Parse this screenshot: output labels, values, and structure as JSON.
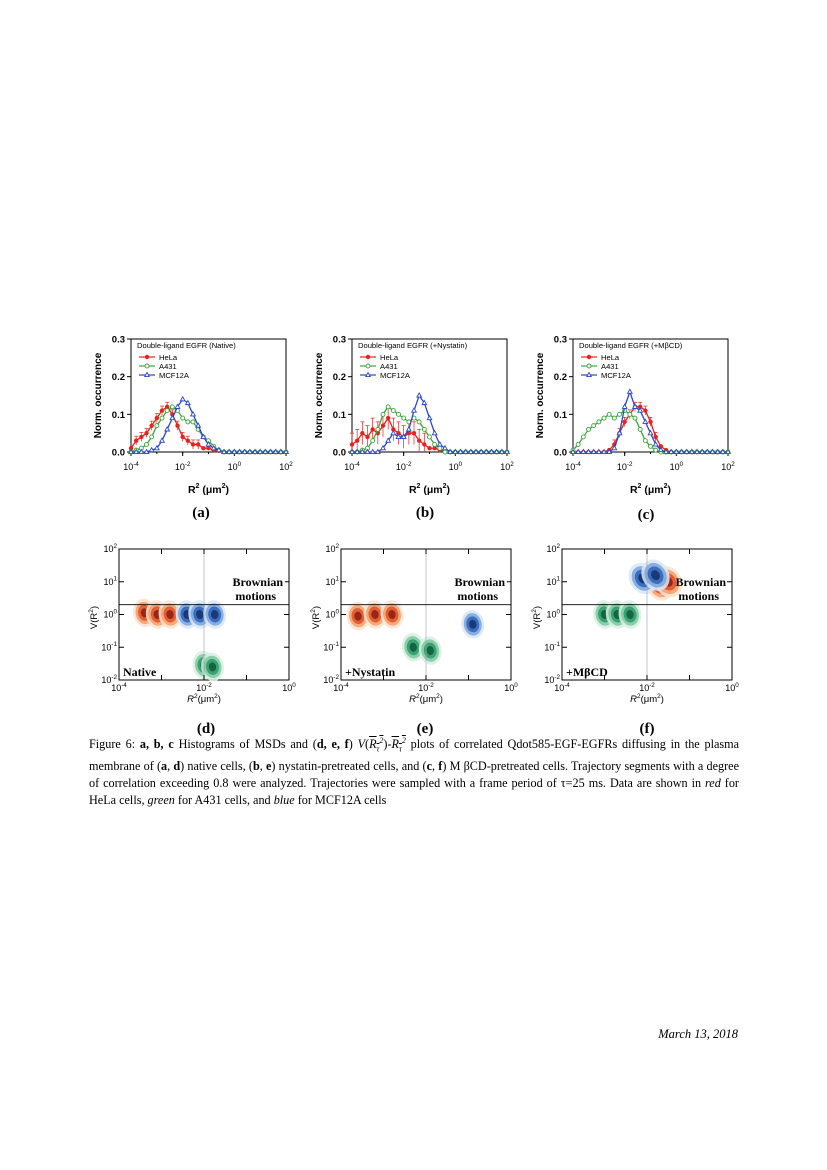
{
  "caption": {
    "fig_label": "Figure 6:",
    "abc": "a, b, c",
    "t1": " Histograms of MSDs and (",
    "def": "d, e, f",
    "t2": ") ",
    "V": "V",
    "Rtau": "R",
    "t3": " plots of correlated Qdot585-EGF-EGFRs diffusing in the plasma membrane of (",
    "a": "a",
    "d": "d",
    "t4": ") native cells, (",
    "b": "b",
    "e": "e",
    "t5": ") nystatin-pretreated cells, and (",
    "c": "c",
    "f": "f",
    "t6": ") M βCD-pretreated cells. Trajectory segments with a degree of correlation exceeding 0.8 were analyzed. Trajectories were sampled with a frame period of τ=25 ms. Data are shown in ",
    "red": "red",
    "t7": " for HeLa cells, ",
    "green": "green",
    "t8": " for A431 cells, and ",
    "blue": "blue",
    "t9": " for MCF12A cells"
  },
  "footer_date": "March 13, 2018",
  "colors": {
    "hela": "#e8221c",
    "a431": "#3aa63a",
    "mcf12a": "#2b46c8"
  },
  "top_axis": {
    "ylabel": "Norm. occurrence",
    "xlabel_base": "R",
    "xlabel_unit": "(μm",
    "yticks": [
      "0.0",
      "0.1",
      "0.2",
      "0.3"
    ],
    "xtick_base": "10",
    "xtick_exps": [
      "-4",
      "-2",
      "0",
      "2"
    ]
  },
  "legend": {
    "hela": "HeLa",
    "a431": "A431",
    "mcf12a": "MCF12A"
  },
  "panel_labels": [
    "(a)",
    "(b)",
    "(c)",
    "(d)",
    "(e)",
    "(f)"
  ],
  "bottom_axis": {
    "ylabel": "V(R",
    "xlabel": "R",
    "xlabel_unit": "(μm",
    "tick_base": "10",
    "yexps": [
      "-2",
      "-1",
      "0",
      "1",
      "2"
    ],
    "xexps": [
      "-4",
      "-2",
      "0"
    ],
    "brownian_1": "Brownian",
    "brownian_2": "motions"
  },
  "chart_data": [
    {
      "type": "line",
      "title": "Double-ligand EGFR (Native)",
      "xlabel": "R2 (μm2)",
      "ylabel": "Norm. occurrence",
      "x_scale": "log",
      "xlim": [
        0.0001,
        100
      ],
      "ylim": [
        0,
        0.3
      ],
      "log10_x": [
        -4.0,
        -3.8,
        -3.6,
        -3.4,
        -3.2,
        -3.0,
        -2.8,
        -2.6,
        -2.4,
        -2.2,
        -2.0,
        -1.8,
        -1.6,
        -1.4,
        -1.2,
        -1.0,
        -0.8,
        -0.6,
        -0.4,
        -0.2,
        0.0,
        0.2,
        0.4,
        0.6,
        0.8,
        1.0,
        1.2,
        1.4,
        1.6,
        1.8,
        2.0
      ],
      "series": [
        {
          "name": "HeLa",
          "values": [
            0.01,
            0.03,
            0.04,
            0.05,
            0.07,
            0.09,
            0.11,
            0.12,
            0.1,
            0.07,
            0.04,
            0.03,
            0.02,
            0.02,
            0.01,
            0.01,
            0.005,
            0.003,
            0,
            0,
            0,
            0,
            0,
            0,
            0,
            0,
            0,
            0,
            0,
            0,
            0
          ]
        },
        {
          "name": "A431",
          "values": [
            0,
            0.005,
            0.01,
            0.02,
            0.04,
            0.07,
            0.09,
            0.11,
            0.12,
            0.11,
            0.09,
            0.08,
            0.08,
            0.06,
            0.04,
            0.03,
            0.015,
            0.005,
            0,
            0,
            0,
            0,
            0,
            0,
            0,
            0,
            0,
            0,
            0,
            0,
            0
          ]
        },
        {
          "name": "MCF12A",
          "values": [
            0,
            0,
            0,
            0,
            0.005,
            0.01,
            0.03,
            0.06,
            0.09,
            0.12,
            0.14,
            0.13,
            0.1,
            0.07,
            0.04,
            0.02,
            0.01,
            0.005,
            0,
            0,
            0,
            0,
            0,
            0,
            0,
            0,
            0,
            0,
            0,
            0,
            0
          ]
        }
      ]
    },
    {
      "type": "line",
      "title": "Double-ligand EGFR (+Nystatin)",
      "xlabel": "R2 (μm2)",
      "ylabel": "Norm. occurrence",
      "x_scale": "log",
      "xlim": [
        0.0001,
        100
      ],
      "ylim": [
        0,
        0.3
      ],
      "log10_x": [
        -4.0,
        -3.8,
        -3.6,
        -3.4,
        -3.2,
        -3.0,
        -2.8,
        -2.6,
        -2.4,
        -2.2,
        -2.0,
        -1.8,
        -1.6,
        -1.4,
        -1.2,
        -1.0,
        -0.8,
        -0.6,
        -0.4,
        -0.2,
        0.0,
        0.2,
        0.4,
        0.6,
        0.8,
        1.0,
        1.2,
        1.4,
        1.6,
        1.8,
        2.0
      ],
      "series": [
        {
          "name": "HeLa",
          "values": [
            0.02,
            0.03,
            0.05,
            0.04,
            0.06,
            0.05,
            0.07,
            0.09,
            0.06,
            0.05,
            0.04,
            0.05,
            0.05,
            0.03,
            0.02,
            0.01,
            0.01,
            0.005,
            0,
            0,
            0,
            0,
            0,
            0,
            0,
            0,
            0,
            0,
            0,
            0,
            0
          ]
        },
        {
          "name": "A431",
          "values": [
            0,
            0,
            0.005,
            0.01,
            0.03,
            0.06,
            0.1,
            0.12,
            0.11,
            0.1,
            0.09,
            0.08,
            0.09,
            0.08,
            0.06,
            0.04,
            0.02,
            0.01,
            0,
            0,
            0,
            0,
            0,
            0,
            0,
            0,
            0,
            0,
            0,
            0,
            0
          ]
        },
        {
          "name": "MCF12A",
          "values": [
            0,
            0,
            0,
            0,
            0,
            0,
            0.01,
            0.03,
            0.05,
            0.04,
            0.04,
            0.06,
            0.11,
            0.15,
            0.13,
            0.09,
            0.05,
            0.02,
            0.01,
            0,
            0,
            0,
            0,
            0,
            0,
            0,
            0,
            0,
            0,
            0,
            0
          ]
        }
      ]
    },
    {
      "type": "line",
      "title": "Double-ligand EGFR (+MβCD)",
      "xlabel": "R2 (μm2)",
      "ylabel": "Norm. occurrence",
      "x_scale": "log",
      "xlim": [
        0.0001,
        100
      ],
      "ylim": [
        0,
        0.3
      ],
      "log10_x": [
        -4.0,
        -3.8,
        -3.6,
        -3.4,
        -3.2,
        -3.0,
        -2.8,
        -2.6,
        -2.4,
        -2.2,
        -2.0,
        -1.8,
        -1.6,
        -1.4,
        -1.2,
        -1.0,
        -0.8,
        -0.6,
        -0.4,
        -0.2,
        0.0,
        0.2,
        0.4,
        0.6,
        0.8,
        1.0,
        1.2,
        1.4,
        1.6,
        1.8,
        2.0
      ],
      "series": [
        {
          "name": "HeLa",
          "values": [
            0,
            0,
            0,
            0,
            0,
            0,
            0,
            0.005,
            0.02,
            0.05,
            0.08,
            0.1,
            0.12,
            0.12,
            0.11,
            0.08,
            0.04,
            0.015,
            0.005,
            0,
            0,
            0,
            0,
            0,
            0,
            0,
            0,
            0,
            0,
            0,
            0
          ]
        },
        {
          "name": "A431",
          "values": [
            0.005,
            0.02,
            0.04,
            0.06,
            0.07,
            0.08,
            0.09,
            0.1,
            0.09,
            0.1,
            0.11,
            0.1,
            0.09,
            0.06,
            0.03,
            0.015,
            0.005,
            0,
            0,
            0,
            0,
            0,
            0,
            0,
            0,
            0,
            0,
            0,
            0,
            0,
            0
          ]
        },
        {
          "name": "MCF12A",
          "values": [
            0,
            0,
            0,
            0,
            0,
            0,
            0,
            0,
            0.01,
            0.05,
            0.12,
            0.16,
            0.12,
            0.11,
            0.08,
            0.05,
            0.02,
            0.005,
            0,
            0,
            0,
            0,
            0,
            0,
            0,
            0,
            0,
            0,
            0,
            0,
            0
          ]
        }
      ]
    },
    {
      "type": "scatter",
      "subtype": "contour",
      "title": "",
      "annotation": "Native",
      "xlabel": "R2(μm2)",
      "ylabel": "V(R2)",
      "x_scale": "log",
      "y_scale": "log",
      "xlim": [
        0.0001,
        1
      ],
      "ylim": [
        0.01,
        100
      ],
      "reference_lines": {
        "x": 0.01,
        "y": 2
      },
      "series": [
        {
          "name": "HeLa",
          "centers_log10": [
            [
              -3.4,
              0.05
            ],
            [
              -3.1,
              0.0
            ],
            [
              -2.8,
              0.0
            ]
          ]
        },
        {
          "name": "A431",
          "centers_log10": [
            [
              -2.0,
              -1.55
            ],
            [
              -1.8,
              -1.6
            ]
          ]
        },
        {
          "name": "MCF12A",
          "centers_log10": [
            [
              -2.4,
              0.0
            ],
            [
              -2.1,
              0.0
            ],
            [
              -1.75,
              0.0
            ]
          ]
        }
      ]
    },
    {
      "type": "scatter",
      "subtype": "contour",
      "title": "",
      "annotation": "+Nystatin",
      "xlabel": "R2(μm2)",
      "ylabel": "V(R2)",
      "x_scale": "log",
      "y_scale": "log",
      "xlim": [
        0.0001,
        1
      ],
      "ylim": [
        0.01,
        100
      ],
      "reference_lines": {
        "x": 0.01,
        "y": 2
      },
      "series": [
        {
          "name": "HeLa",
          "centers_log10": [
            [
              -3.6,
              -0.05
            ],
            [
              -3.2,
              0.0
            ],
            [
              -2.8,
              0.0
            ]
          ]
        },
        {
          "name": "A431",
          "centers_log10": [
            [
              -2.3,
              -1.0
            ],
            [
              -1.9,
              -1.1
            ]
          ]
        },
        {
          "name": "MCF12A",
          "centers_log10": [
            [
              -0.9,
              -0.3
            ]
          ]
        }
      ]
    },
    {
      "type": "scatter",
      "subtype": "contour",
      "title": "",
      "annotation": "+MβCD",
      "xlabel": "R2(μm2)",
      "ylabel": "V(R2)",
      "x_scale": "log",
      "y_scale": "log",
      "xlim": [
        0.0001,
        1
      ],
      "ylim": [
        0.01,
        100
      ],
      "reference_lines": {
        "x": 0.01,
        "y": 2
      },
      "series": [
        {
          "name": "HeLa",
          "centers_log10": [
            [
              -1.7,
              0.9
            ],
            [
              -1.5,
              1.0
            ]
          ]
        },
        {
          "name": "A431",
          "centers_log10": [
            [
              -3.0,
              0.0
            ],
            [
              -2.7,
              0.0
            ],
            [
              -2.4,
              0.0
            ]
          ]
        },
        {
          "name": "MCF12A",
          "centers_log10": [
            [
              -2.1,
              1.1
            ],
            [
              -1.8,
              1.2
            ]
          ]
        }
      ]
    }
  ]
}
